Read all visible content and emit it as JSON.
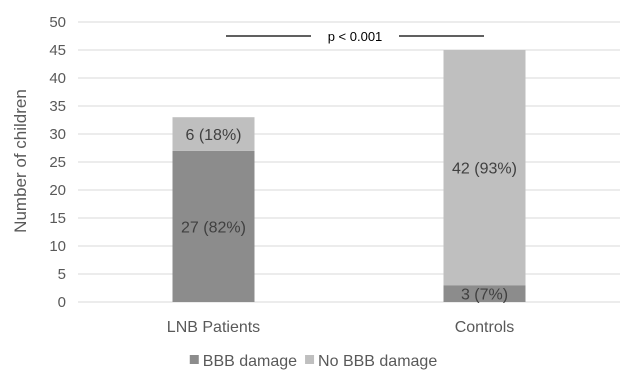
{
  "chart_data": {
    "type": "bar",
    "stacked": true,
    "categories": [
      "LNB Patients",
      "Controls"
    ],
    "series": [
      {
        "name": "BBB damage",
        "values": [
          27,
          3
        ],
        "labels": [
          "27 (82%)",
          "3 (7%)"
        ],
        "color": "#8c8c8c"
      },
      {
        "name": "No BBB damage",
        "values": [
          6,
          42
        ],
        "labels": [
          "6 (18%)",
          "42 (93%)"
        ],
        "color": "#bfbfbf"
      }
    ],
    "ylabel": "Number of children",
    "ylim": [
      0,
      50
    ],
    "yticks": [
      0,
      5,
      10,
      15,
      20,
      25,
      30,
      35,
      40,
      45,
      50
    ],
    "grid": true,
    "legend": "bottom",
    "annotation": "p < 0.001"
  }
}
